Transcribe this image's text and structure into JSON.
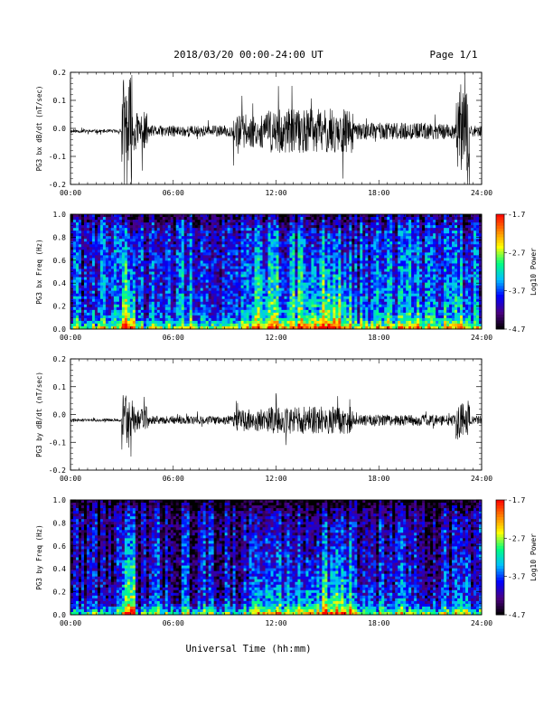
{
  "header": {
    "title": "2018/03/20  00:00-24:00 UT",
    "page": "Page 1/1"
  },
  "footer": {
    "xlabel": "Universal Time (hh:mm)"
  },
  "colors": {
    "background": "#ffffff",
    "trace": "#000000",
    "colormap": [
      "#000000",
      "#4b0082",
      "#0000ff",
      "#00bfff",
      "#00ff80",
      "#ffff00",
      "#ff8000",
      "#ff0000"
    ]
  },
  "chart_data": [
    {
      "type": "line",
      "ylabel": "PG3 bx dB/dt (nT/sec)",
      "xticks": [
        "00:00",
        "06:00",
        "12:00",
        "18:00",
        "24:00"
      ],
      "xlim_hours": [
        0,
        24
      ],
      "ylim": [
        -0.2,
        0.2
      ],
      "yticks": [
        "0.2",
        "0.1",
        "0.0",
        "-0.1",
        "-0.2"
      ],
      "baseline": -0.01,
      "activity": [
        {
          "start": 0,
          "end": 3,
          "amplitude": 0.006
        },
        {
          "start": 3,
          "end": 3.6,
          "amplitude": 0.2
        },
        {
          "start": 3.6,
          "end": 4.5,
          "amplitude": 0.07
        },
        {
          "start": 4.5,
          "end": 9.5,
          "amplitude": 0.02
        },
        {
          "start": 9.5,
          "end": 11.5,
          "amplitude": 0.06
        },
        {
          "start": 11.5,
          "end": 16.5,
          "amplitude": 0.08
        },
        {
          "start": 16.5,
          "end": 22.5,
          "amplitude": 0.03
        },
        {
          "start": 22.5,
          "end": 23.3,
          "amplitude": 0.14
        },
        {
          "start": 23.3,
          "end": 24,
          "amplitude": 0.02
        }
      ]
    },
    {
      "type": "heatmap",
      "ylabel": "PG3 bx Freq (Hz)",
      "xticks": [
        "00:00",
        "06:00",
        "12:00",
        "18:00",
        "24:00"
      ],
      "xlim_hours": [
        0,
        24
      ],
      "ylim": [
        0.0,
        1.0
      ],
      "yticks": [
        "1.0",
        "0.8",
        "0.6",
        "0.4",
        "0.2",
        "0.0"
      ],
      "colorbar": {
        "label": "Log10 Power",
        "ticks": [
          "-1.7",
          "-2.7",
          "-3.7",
          "-4.7"
        ],
        "range": [
          -4.7,
          -1.7
        ]
      },
      "background_level": -3.9
    },
    {
      "type": "line",
      "ylabel": "PG3 by dB/dt (nT/sec)",
      "xticks": [
        "00:00",
        "06:00",
        "12:00",
        "18:00",
        "24:00"
      ],
      "xlim_hours": [
        0,
        24
      ],
      "ylim": [
        -0.2,
        0.2
      ],
      "yticks": [
        "0.2",
        "0.1",
        "0.0",
        "-0.1",
        "-0.2"
      ],
      "baseline": -0.02,
      "activity": [
        {
          "start": 0,
          "end": 3,
          "amplitude": 0.005
        },
        {
          "start": 3,
          "end": 3.6,
          "amplitude": 0.11
        },
        {
          "start": 3.6,
          "end": 4.5,
          "amplitude": 0.05
        },
        {
          "start": 4.5,
          "end": 9.5,
          "amplitude": 0.015
        },
        {
          "start": 9.5,
          "end": 11.5,
          "amplitude": 0.04
        },
        {
          "start": 11.5,
          "end": 16.5,
          "amplitude": 0.05
        },
        {
          "start": 16.5,
          "end": 22.5,
          "amplitude": 0.02
        },
        {
          "start": 22.5,
          "end": 23.3,
          "amplitude": 0.07
        },
        {
          "start": 23.3,
          "end": 24,
          "amplitude": 0.015
        }
      ]
    },
    {
      "type": "heatmap",
      "ylabel": "PG3 by Freq (Hz)",
      "xticks": [
        "00:00",
        "06:00",
        "12:00",
        "18:00",
        "24:00"
      ],
      "xlim_hours": [
        0,
        24
      ],
      "ylim": [
        0.0,
        1.0
      ],
      "yticks": [
        "1.0",
        "0.8",
        "0.6",
        "0.4",
        "0.2",
        "0.0"
      ],
      "colorbar": {
        "label": "Log10 Power",
        "ticks": [
          "-1.7",
          "-2.7",
          "-3.7",
          "-4.7"
        ],
        "range": [
          -4.7,
          -1.7
        ]
      },
      "background_level": -4.2
    }
  ]
}
